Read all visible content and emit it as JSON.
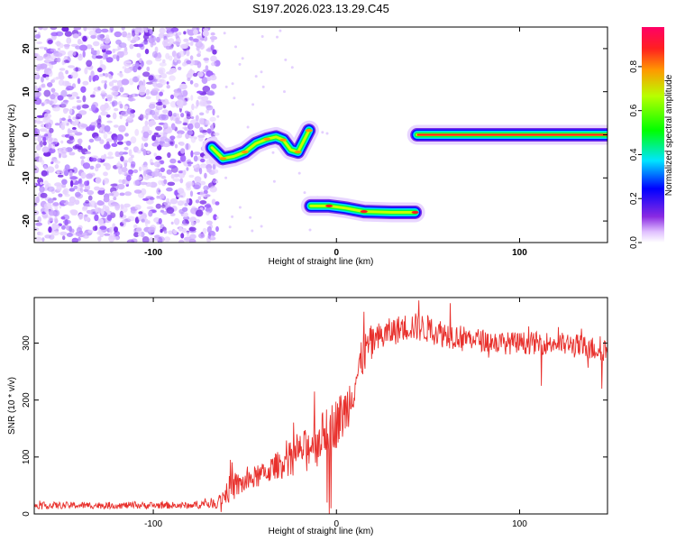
{
  "chart_data": [
    {
      "type": "heatmap",
      "title": "S197.2026.023.13.29.C45",
      "xlabel": "Height of straight line (km)",
      "ylabel": "Frequency (Hz)",
      "xlim": [
        -165,
        148
      ],
      "ylim": [
        -25,
        25
      ],
      "xticks": [
        -100,
        0,
        100
      ],
      "xtick_labels": [
        "-100",
        "0",
        "100"
      ],
      "yticks": [
        20,
        10,
        0,
        -10,
        -20
      ],
      "ytick_labels": [
        "20",
        "10",
        "0",
        "-10",
        "-20"
      ],
      "noise_region_x": [
        -165,
        -68
      ],
      "tracks": [
        {
          "name": "curved track",
          "points": [
            [
              -68,
              -3
            ],
            [
              -62,
              -5.5
            ],
            [
              -56,
              -5
            ],
            [
              -50,
              -4
            ],
            [
              -44,
              -2
            ],
            [
              -38,
              -1
            ],
            [
              -33,
              -0.5
            ],
            [
              -29,
              -1.2
            ],
            [
              -25,
              -3.5
            ],
            [
              -21,
              -4
            ],
            [
              -18,
              -1.5
            ],
            [
              -15,
              1
            ]
          ],
          "peak_amplitude": 0.6
        },
        {
          "name": "low track",
          "points": [
            [
              -14,
              -16.5
            ],
            [
              -4,
              -16.5
            ],
            [
              5,
              -17
            ],
            [
              15,
              -17.8
            ],
            [
              30,
              -18
            ],
            [
              43,
              -18
            ]
          ],
          "peak_amplitude": 0.85
        },
        {
          "name": "zero track",
          "points": [
            [
              44,
              0
            ],
            [
              148,
              0
            ]
          ],
          "peak_amplitude": 0.95
        }
      ],
      "colorbar": {
        "label": "Normalized spectral amplitude",
        "range": [
          0,
          0.98
        ],
        "ticks": [
          0.0,
          0.2,
          0.4,
          0.6,
          0.8
        ],
        "tick_labels": [
          "0.0",
          "0.2",
          "0.4",
          "0.6",
          "0.8"
        ]
      }
    },
    {
      "type": "line",
      "xlabel": "Height of straight line (km)",
      "ylabel": "SNR (10 * v/v)",
      "xlim": [
        -165,
        148
      ],
      "ylim": [
        0,
        380
      ],
      "xticks": [
        -100,
        0,
        100
      ],
      "xtick_labels": [
        "-100",
        "0",
        "100"
      ],
      "yticks": [
        0,
        100,
        200,
        300
      ],
      "ytick_labels": [
        "0",
        "100",
        "200",
        "300"
      ],
      "color": "#e8302c",
      "series": [
        {
          "name": "SNR",
          "x": [
            -165,
            -140,
            -120,
            -100,
            -80,
            -65,
            -58,
            -50,
            -40,
            -30,
            -20,
            -10,
            -5,
            0,
            5,
            10,
            15,
            18,
            30,
            40,
            50,
            60,
            70,
            80,
            90,
            100,
            110,
            120,
            130,
            140,
            148
          ],
          "mean": [
            15,
            15,
            15,
            15,
            15,
            20,
            45,
            55,
            70,
            90,
            110,
            130,
            150,
            160,
            180,
            230,
            280,
            300,
            320,
            330,
            325,
            315,
            310,
            305,
            300,
            300,
            300,
            300,
            295,
            290,
            290
          ],
          "spread": [
            6,
            6,
            6,
            6,
            6,
            10,
            25,
            20,
            20,
            25,
            30,
            40,
            40,
            45,
            45,
            40,
            35,
            30,
            25,
            25,
            25,
            25,
            20,
            20,
            20,
            20,
            20,
            20,
            22,
            22,
            22
          ],
          "spike_highs": [
            [
              -58,
              95
            ],
            [
              -43,
              85
            ],
            [
              -12,
              215
            ],
            [
              -4,
              175
            ],
            [
              15,
              355
            ],
            [
              45,
              375
            ],
            [
              62,
              370
            ],
            [
              95,
              305
            ]
          ],
          "spike_lows": [
            [
              -5,
              20
            ],
            [
              -4,
              0
            ],
            [
              -3,
              10
            ],
            [
              112,
              225
            ],
            [
              145,
              220
            ]
          ]
        }
      ]
    }
  ]
}
